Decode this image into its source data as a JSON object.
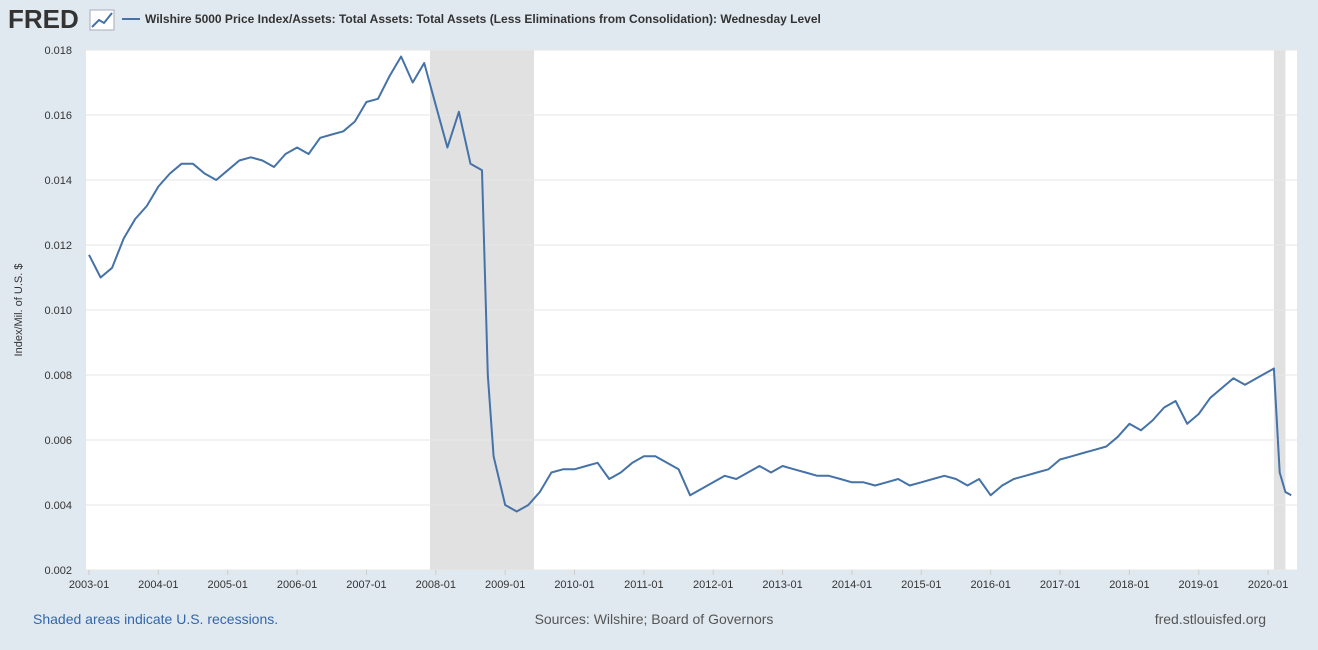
{
  "logo": "FRED",
  "chart_data": {
    "type": "line",
    "title": "Wilshire 5000 Price Index/Assets: Total Assets: Total Assets (Less Eliminations from Consolidation): Wednesday Level",
    "y_label": "Index/Mil. of U.S. $",
    "recession_note": "Shaded areas indicate U.S. recessions.",
    "source": "Sources: Wilshire; Board of Governors",
    "site": "fred.stlouisfed.org",
    "recessions": [
      [
        "2007-12",
        "2009-06"
      ],
      [
        "2020-02",
        "2020-04"
      ]
    ],
    "xlim": [
      "2003-01",
      "2020-06"
    ],
    "xticks": [
      "2003-01",
      "2004-01",
      "2005-01",
      "2006-01",
      "2007-01",
      "2008-01",
      "2009-01",
      "2010-01",
      "2011-01",
      "2012-01",
      "2013-01",
      "2014-01",
      "2015-01",
      "2016-01",
      "2017-01",
      "2018-01",
      "2019-01",
      "2020-01"
    ],
    "ylim": [
      0.002,
      0.018
    ],
    "yticks": [
      0.002,
      0.004,
      0.006,
      0.008,
      {
        "value": 0.01,
        "label": "0.010"
      },
      0.012,
      0.014,
      0.016,
      0.018
    ],
    "grid": true,
    "x": [
      "2003-01",
      "2003-03",
      "2003-05",
      "2003-07",
      "2003-09",
      "2003-11",
      "2004-01",
      "2004-03",
      "2004-05",
      "2004-07",
      "2004-09",
      "2004-11",
      "2005-01",
      "2005-03",
      "2005-05",
      "2005-07",
      "2005-09",
      "2005-11",
      "2006-01",
      "2006-03",
      "2006-05",
      "2006-07",
      "2006-09",
      "2006-11",
      "2007-01",
      "2007-03",
      "2007-05",
      "2007-07",
      "2007-09",
      "2007-11",
      "2008-01",
      "2008-03",
      "2008-05",
      "2008-07",
      "2008-09",
      "2008-10",
      "2008-11",
      "2009-01",
      "2009-03",
      "2009-05",
      "2009-07",
      "2009-09",
      "2009-11",
      "2010-01",
      "2010-03",
      "2010-05",
      "2010-07",
      "2010-09",
      "2010-11",
      "2011-01",
      "2011-03",
      "2011-05",
      "2011-07",
      "2011-09",
      "2011-11",
      "2012-01",
      "2012-03",
      "2012-05",
      "2012-07",
      "2012-09",
      "2012-11",
      "2013-01",
      "2013-03",
      "2013-05",
      "2013-07",
      "2013-09",
      "2013-11",
      "2014-01",
      "2014-03",
      "2014-05",
      "2014-07",
      "2014-09",
      "2014-11",
      "2015-01",
      "2015-03",
      "2015-05",
      "2015-07",
      "2015-09",
      "2015-11",
      "2016-01",
      "2016-03",
      "2016-05",
      "2016-07",
      "2016-09",
      "2016-11",
      "2017-01",
      "2017-03",
      "2017-05",
      "2017-07",
      "2017-09",
      "2017-11",
      "2018-01",
      "2018-03",
      "2018-05",
      "2018-07",
      "2018-09",
      "2018-11",
      "2019-01",
      "2019-03",
      "2019-05",
      "2019-07",
      "2019-09",
      "2019-11",
      "2020-01",
      "2020-02",
      "2020-03",
      "2020-04",
      "2020-05"
    ],
    "series": [
      {
        "name": "Wilshire 5000 Price Index/Assets: Total Assets: Total Assets (Less Eliminations from Consolidation): Wednesday Level",
        "color": "#4572a7",
        "values": [
          0.0117,
          0.011,
          0.0113,
          0.0122,
          0.0128,
          0.0132,
          0.0138,
          0.0142,
          0.0145,
          0.0145,
          0.0142,
          0.014,
          0.0143,
          0.0146,
          0.0147,
          0.0146,
          0.0144,
          0.0148,
          0.015,
          0.0148,
          0.0153,
          0.0154,
          0.0155,
          0.0158,
          0.0164,
          0.0165,
          0.0172,
          0.0178,
          0.017,
          0.0176,
          0.0163,
          0.015,
          0.0161,
          0.0145,
          0.0143,
          0.008,
          0.0055,
          0.004,
          0.0038,
          0.004,
          0.0044,
          0.005,
          0.0051,
          0.0051,
          0.0052,
          0.0053,
          0.0048,
          0.005,
          0.0053,
          0.0055,
          0.0055,
          0.0053,
          0.0051,
          0.0043,
          0.0045,
          0.0047,
          0.0049,
          0.0048,
          0.005,
          0.0052,
          0.005,
          0.0052,
          0.0051,
          0.005,
          0.0049,
          0.0049,
          0.0048,
          0.0047,
          0.0047,
          0.0046,
          0.0047,
          0.0048,
          0.0046,
          0.0047,
          0.0048,
          0.0049,
          0.0048,
          0.0046,
          0.0048,
          0.0043,
          0.0046,
          0.0048,
          0.0049,
          0.005,
          0.0051,
          0.0054,
          0.0055,
          0.0056,
          0.0057,
          0.0058,
          0.0061,
          0.0065,
          0.0063,
          0.0066,
          0.007,
          0.0072,
          0.0065,
          0.0068,
          0.0073,
          0.0076,
          0.0079,
          0.0077,
          0.0079,
          0.0081,
          0.0082,
          0.005,
          0.0044,
          0.0043
        ]
      }
    ]
  }
}
